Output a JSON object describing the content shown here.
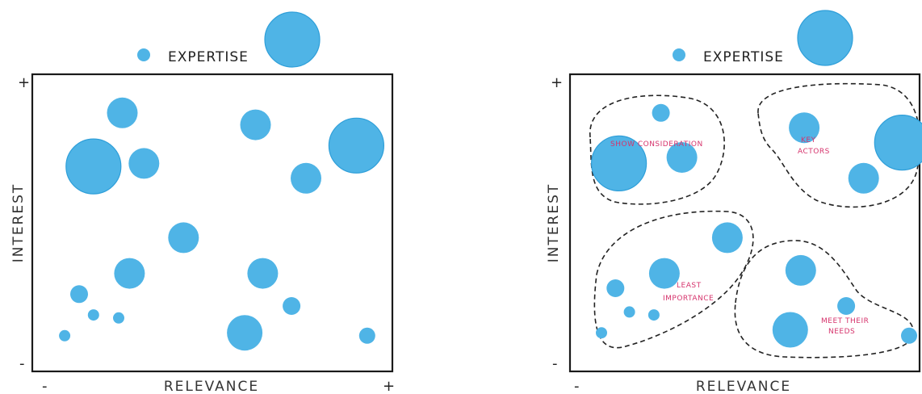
{
  "colors": {
    "bubble": "#4fb4e6",
    "bubble_ring": "#2f9fd9",
    "axis": "#1a1a1a",
    "group_label": "#d6336c",
    "group_outline": "#222222"
  },
  "legend": {
    "label": "EXPERTISE"
  },
  "axes": {
    "x_label": "RELEVANCE",
    "y_label": "INTEREST",
    "min_sign": "-",
    "max_sign": "+"
  },
  "groups": {
    "show_consideration": "SHOW CONSIDERATION",
    "key_actors_1": "KEY",
    "key_actors_2": "ACTORS",
    "least_importance_1": "LEAST",
    "least_importance_2": "IMPORTANCE",
    "meet_their_needs_1": "MEET THEIR",
    "meet_their_needs_2": "NEEDS"
  },
  "chart_data": [
    {
      "type": "scatter",
      "xlabel": "RELEVANCE",
      "ylabel": "INTEREST",
      "xlim": [
        0,
        100
      ],
      "ylim": [
        0,
        100
      ],
      "grid": false,
      "legend": "top-center",
      "points": [
        {
          "x": 25,
          "y": 87,
          "expertise": 1
        },
        {
          "x": 62,
          "y": 83,
          "expertise": 1
        },
        {
          "x": 17,
          "y": 69,
          "expertise": 3
        },
        {
          "x": 31,
          "y": 70,
          "expertise": 1
        },
        {
          "x": 76,
          "y": 65,
          "expertise": 1
        },
        {
          "x": 90,
          "y": 76,
          "expertise": 3
        },
        {
          "x": 42,
          "y": 45,
          "expertise": 1
        },
        {
          "x": 27,
          "y": 33,
          "expertise": 1
        },
        {
          "x": 64,
          "y": 33,
          "expertise": 1
        },
        {
          "x": 13,
          "y": 26,
          "expertise": 0.5
        },
        {
          "x": 17,
          "y": 19,
          "expertise": 0.3
        },
        {
          "x": 24,
          "y": 18,
          "expertise": 0.3
        },
        {
          "x": 9,
          "y": 12,
          "expertise": 0.3
        },
        {
          "x": 72,
          "y": 22,
          "expertise": 0.5
        },
        {
          "x": 59,
          "y": 13,
          "expertise": 1.3
        },
        {
          "x": 93,
          "y": 12,
          "expertise": 0.4
        }
      ]
    },
    {
      "type": "scatter",
      "xlabel": "RELEVANCE",
      "ylabel": "INTEREST",
      "xlim": [
        0,
        100
      ],
      "ylim": [
        0,
        100
      ],
      "grid": false,
      "legend": "top-center",
      "points": [
        {
          "x": 26,
          "y": 87,
          "expertise": 0.5
        },
        {
          "x": 14,
          "y": 70,
          "expertise": 3
        },
        {
          "x": 32,
          "y": 72,
          "expertise": 1
        },
        {
          "x": 67,
          "y": 82,
          "expertise": 1
        },
        {
          "x": 84,
          "y": 65,
          "expertise": 1
        },
        {
          "x": 95,
          "y": 77,
          "expertise": 3
        },
        {
          "x": 45,
          "y": 45,
          "expertise": 1
        },
        {
          "x": 27,
          "y": 33,
          "expertise": 1
        },
        {
          "x": 13,
          "y": 28,
          "expertise": 0.5
        },
        {
          "x": 17,
          "y": 20,
          "expertise": 0.3
        },
        {
          "x": 24,
          "y": 19,
          "expertise": 0.3
        },
        {
          "x": 9,
          "y": 13,
          "expertise": 0.3
        },
        {
          "x": 66,
          "y": 34,
          "expertise": 1
        },
        {
          "x": 79,
          "y": 22,
          "expertise": 0.5
        },
        {
          "x": 63,
          "y": 14,
          "expertise": 1.3
        },
        {
          "x": 97,
          "y": 12,
          "expertise": 0.4
        }
      ]
    }
  ]
}
